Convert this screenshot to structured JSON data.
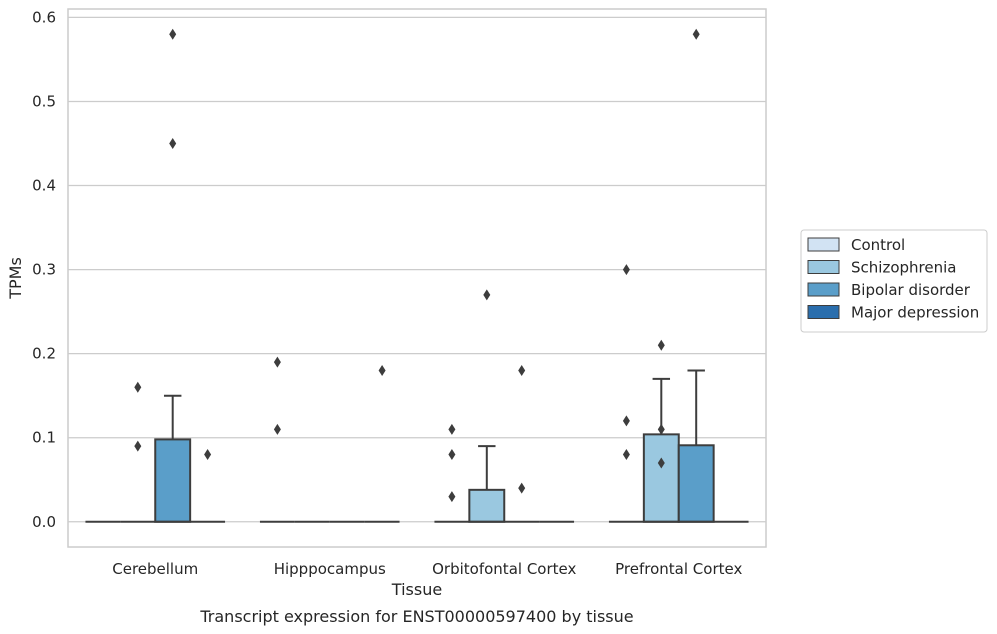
{
  "chart_data": {
    "type": "box",
    "xlabel": "Tissue",
    "ylabel": "TPMs",
    "caption": "Transcript expression for ENST00000597400 by tissue",
    "ylim": [
      -0.03,
      0.61
    ],
    "yticks": [
      0.0,
      0.1,
      0.2,
      0.3,
      0.4,
      0.5,
      0.6
    ],
    "ytick_labels": [
      "0.0",
      "0.1",
      "0.2",
      "0.3",
      "0.4",
      "0.5",
      "0.6"
    ],
    "grid": true,
    "legend_position": "right",
    "categories": [
      "Cerebellum",
      "Hipppocampus",
      "Orbitofontal Cortex",
      "Prefrontal Cortex"
    ],
    "series": [
      {
        "name": "Control",
        "color": "#d2e3f3",
        "boxes": [
          {
            "q1": 0,
            "median": 0,
            "q3": 0,
            "whisker_low": 0,
            "whisker_high": 0,
            "outliers": []
          },
          {
            "q1": 0,
            "median": 0,
            "q3": 0,
            "whisker_low": 0,
            "whisker_high": 0,
            "outliers": [
              0.19,
              0.11
            ]
          },
          {
            "q1": 0,
            "median": 0,
            "q3": 0,
            "whisker_low": 0,
            "whisker_high": 0,
            "outliers": [
              0.11,
              0.08,
              0.03
            ]
          },
          {
            "q1": 0,
            "median": 0,
            "q3": 0,
            "whisker_low": 0,
            "whisker_high": 0,
            "outliers": [
              0.3,
              0.12,
              0.08
            ]
          }
        ]
      },
      {
        "name": "Schizophrenia",
        "color": "#9ac8e0",
        "boxes": [
          {
            "q1": 0,
            "median": 0,
            "q3": 0,
            "whisker_low": 0,
            "whisker_high": 0,
            "outliers": [
              0.16,
              0.09
            ]
          },
          {
            "q1": 0,
            "median": 0,
            "q3": 0,
            "whisker_low": 0,
            "whisker_high": 0,
            "outliers": []
          },
          {
            "q1": 0,
            "median": 0,
            "q3": 0.038,
            "whisker_low": 0,
            "whisker_high": 0.09,
            "outliers": [
              0.27
            ]
          },
          {
            "q1": 0,
            "median": 0,
            "q3": 0.104,
            "whisker_low": 0,
            "whisker_high": 0.17,
            "outliers": [
              0.21,
              0.11,
              0.07
            ]
          }
        ]
      },
      {
        "name": "Bipolar disorder",
        "color": "#5a9ec9",
        "boxes": [
          {
            "q1": 0,
            "median": 0,
            "q3": 0.098,
            "whisker_low": 0,
            "whisker_high": 0.15,
            "outliers": [
              0.58,
              0.45
            ]
          },
          {
            "q1": 0,
            "median": 0,
            "q3": 0,
            "whisker_low": 0,
            "whisker_high": 0,
            "outliers": []
          },
          {
            "q1": 0,
            "median": 0,
            "q3": 0,
            "whisker_low": 0,
            "whisker_high": 0,
            "outliers": [
              0.18,
              0.04
            ]
          },
          {
            "q1": 0,
            "median": 0,
            "q3": 0.091,
            "whisker_low": 0,
            "whisker_high": 0.18,
            "outliers": [
              0.58
            ]
          }
        ]
      },
      {
        "name": "Major depression",
        "color": "#2a6ead",
        "boxes": [
          {
            "q1": 0,
            "median": 0,
            "q3": 0,
            "whisker_low": 0,
            "whisker_high": 0,
            "outliers": [
              0.08
            ]
          },
          {
            "q1": 0,
            "median": 0,
            "q3": 0,
            "whisker_low": 0,
            "whisker_high": 0,
            "outliers": [
              0.18
            ]
          },
          {
            "q1": 0,
            "median": 0,
            "q3": 0,
            "whisker_low": 0,
            "whisker_high": 0,
            "outliers": []
          },
          {
            "q1": 0,
            "median": 0,
            "q3": 0,
            "whisker_low": 0,
            "whisker_high": 0,
            "outliers": []
          }
        ]
      }
    ]
  }
}
